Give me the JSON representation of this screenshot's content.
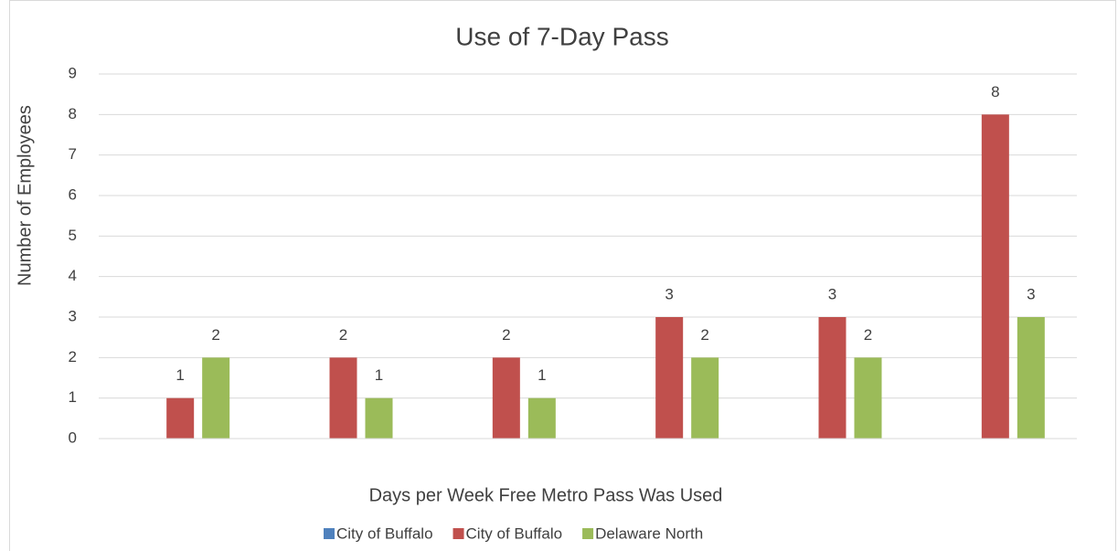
{
  "chart_data": {
    "type": "bar",
    "title": "Use of 7-Day Pass",
    "x_label": "Days per Week Free Metro Pass Was Used",
    "y_label": "Number of Employees",
    "categories": [
      null,
      null,
      null,
      null,
      null,
      null
    ],
    "series": [
      {
        "name": "City of Buffalo",
        "color": "#4f81bd",
        "values": [
          null,
          null,
          null,
          null,
          null,
          null
        ]
      },
      {
        "name": "City of Buffalo",
        "color": "#c0504d",
        "values": [
          1,
          2,
          2,
          3,
          3,
          8
        ]
      },
      {
        "name": "Delaware North",
        "color": "#9bbb59",
        "values": [
          2,
          1,
          1,
          2,
          2,
          3
        ]
      }
    ],
    "ylim": [
      0,
      9
    ],
    "yticks": [
      0,
      1,
      2,
      3,
      4,
      5,
      6,
      7,
      8,
      9
    ],
    "grid": true,
    "legend": "bottom"
  }
}
